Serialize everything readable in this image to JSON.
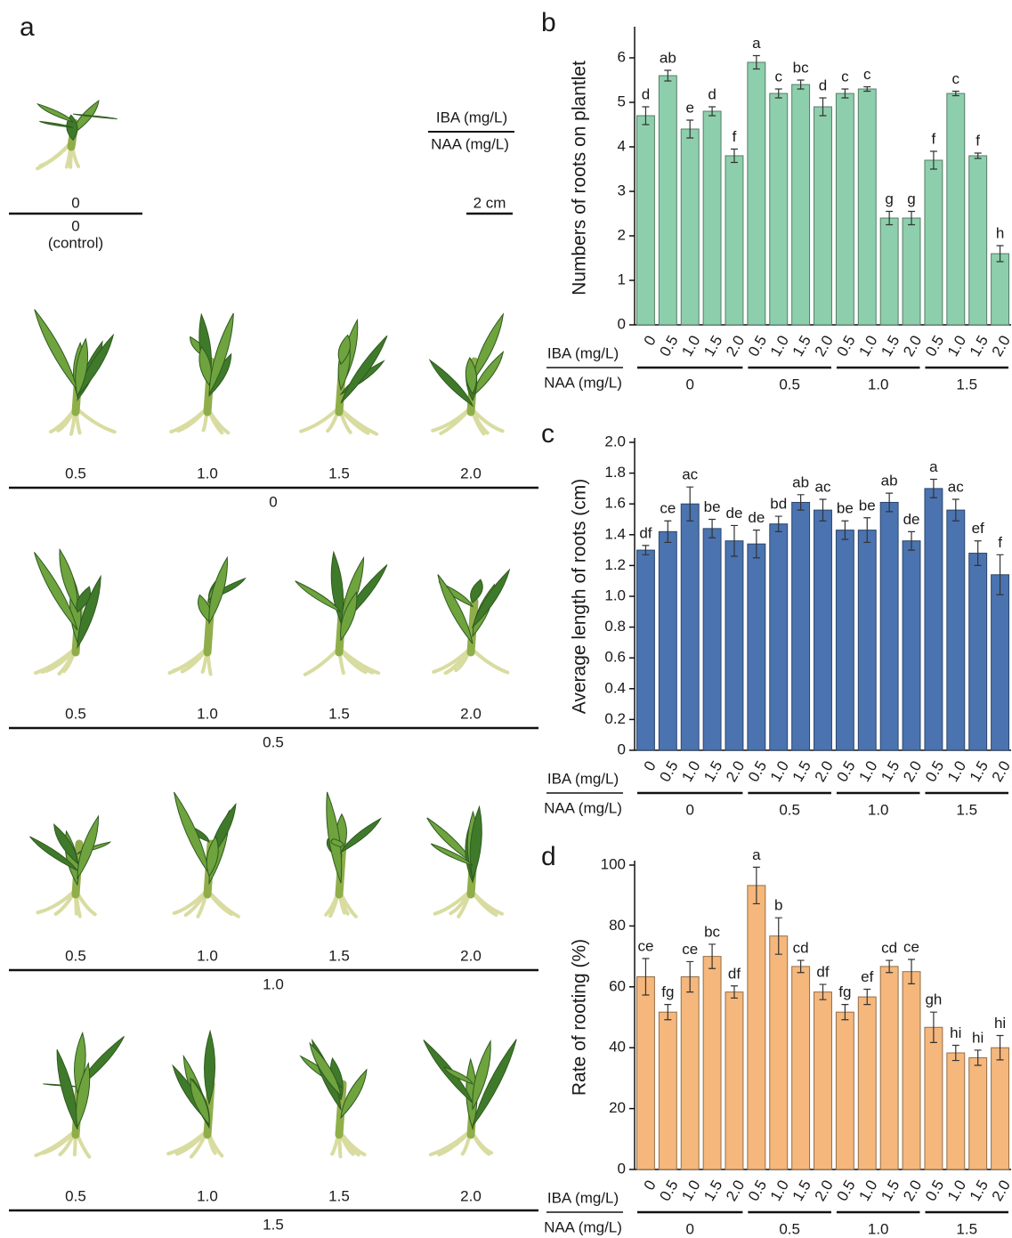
{
  "panel_a": {
    "letter": "a",
    "control": {
      "iba": "0",
      "naa": "0",
      "note": "(control)"
    },
    "legend": {
      "iba": "IBA (mg/L)",
      "naa": "NAA (mg/L)"
    },
    "scale": "2 cm",
    "rows": [
      {
        "naa": "0",
        "iba": [
          "0.5",
          "1.0",
          "1.5",
          "2.0"
        ]
      },
      {
        "naa": "0.5",
        "iba": [
          "0.5",
          "1.0",
          "1.5",
          "2.0"
        ]
      },
      {
        "naa": "1.0",
        "iba": [
          "0.5",
          "1.0",
          "1.5",
          "2.0"
        ]
      },
      {
        "naa": "1.5",
        "iba": [
          "0.5",
          "1.0",
          "1.5",
          "2.0"
        ]
      }
    ]
  },
  "chart_data": [
    {
      "type": "bar",
      "panel": "b",
      "ylabel": "Numbers of roots on plantlet",
      "color": "#8dcfac",
      "row_labels": [
        "IBA (mg/L)",
        "NAA (mg/L)"
      ],
      "groups": [
        {
          "name": "0",
          "categories": [
            "0",
            "0.5",
            "1.0",
            "1.5",
            "2.0"
          ]
        },
        {
          "name": "0.5",
          "categories": [
            "0.5",
            "1.0",
            "1.5",
            "2.0"
          ]
        },
        {
          "name": "1.0",
          "categories": [
            "0.5",
            "1.0",
            "1.5",
            "2.0"
          ]
        },
        {
          "name": "1.5",
          "categories": [
            "0.5",
            "1.0",
            "1.5",
            "2.0"
          ]
        }
      ],
      "values": [
        4.7,
        5.6,
        4.4,
        4.8,
        3.8,
        5.9,
        5.2,
        5.4,
        4.9,
        5.2,
        5.3,
        2.4,
        2.4,
        3.7,
        5.2,
        3.8,
        1.6
      ],
      "errors": [
        0.2,
        0.12,
        0.2,
        0.1,
        0.15,
        0.15,
        0.1,
        0.1,
        0.2,
        0.1,
        0.05,
        0.15,
        0.15,
        0.2,
        0.05,
        0.06,
        0.18
      ],
      "letters": [
        "d",
        "ab",
        "e",
        "d",
        "f",
        "a",
        "c",
        "bc",
        "d",
        "c",
        "c",
        "g",
        "g",
        "f",
        "c",
        "f",
        "h"
      ],
      "ylim": [
        0,
        6.6
      ],
      "yticks": [
        0,
        1,
        2,
        3,
        4,
        5,
        6
      ]
    },
    {
      "type": "bar",
      "panel": "c",
      "ylabel": "Average length of roots (cm)",
      "color": "#4a73b0",
      "row_labels": [
        "IBA (mg/L)",
        "NAA (mg/L)"
      ],
      "groups": [
        {
          "name": "0",
          "categories": [
            "0",
            "0.5",
            "1.0",
            "1.5",
            "2.0"
          ]
        },
        {
          "name": "0.5",
          "categories": [
            "0.5",
            "1.0",
            "1.5",
            "2.0"
          ]
        },
        {
          "name": "1.0",
          "categories": [
            "0.5",
            "1.0",
            "1.5",
            "2.0"
          ]
        },
        {
          "name": "1.5",
          "categories": [
            "0.5",
            "1.0",
            "1.5",
            "2.0"
          ]
        }
      ],
      "values": [
        1.3,
        1.42,
        1.6,
        1.44,
        1.36,
        1.34,
        1.47,
        1.61,
        1.56,
        1.43,
        1.43,
        1.61,
        1.36,
        1.7,
        1.56,
        1.28,
        1.14
      ],
      "errors": [
        0.03,
        0.07,
        0.11,
        0.06,
        0.1,
        0.09,
        0.05,
        0.05,
        0.07,
        0.06,
        0.08,
        0.06,
        0.06,
        0.06,
        0.07,
        0.08,
        0.13
      ],
      "letters": [
        "df",
        "ce",
        "ac",
        "be",
        "de",
        "de",
        "bd",
        "ab",
        "ac",
        "be",
        "be",
        "ab",
        "de",
        "a",
        "ac",
        "ef",
        "f"
      ],
      "ylim": [
        0,
        2
      ],
      "yticks": [
        0,
        0.2,
        0.4,
        0.6,
        0.8,
        {
          "value": 1,
          "label": "1.0"
        },
        1.2,
        1.4,
        1.6,
        1.8,
        {
          "value": 2,
          "label": "2.0"
        }
      ]
    },
    {
      "type": "bar",
      "panel": "d",
      "ylabel": "Rate of rooting (%)",
      "color": "#f5b77b",
      "row_labels": [
        "IBA (mg/L)",
        "NAA (mg/L)"
      ],
      "groups": [
        {
          "name": "0",
          "categories": [
            "0",
            "0.5",
            "1.0",
            "1.5",
            "2.0"
          ]
        },
        {
          "name": "0.5",
          "categories": [
            "0.5",
            "1.0",
            "1.5",
            "2.0"
          ]
        },
        {
          "name": "1.0",
          "categories": [
            "0.5",
            "1.0",
            "1.5",
            "2.0"
          ]
        },
        {
          "name": "1.5",
          "categories": [
            "0.5",
            "1.0",
            "1.5",
            "2.0"
          ]
        }
      ],
      "values": [
        63.3,
        51.7,
        63.3,
        70,
        58.3,
        93.3,
        76.7,
        66.7,
        58.3,
        51.7,
        56.7,
        66.7,
        65,
        46.7,
        38.3,
        36.7,
        40
      ],
      "errors": [
        6,
        2.5,
        5,
        4,
        2,
        6,
        6,
        2,
        2.5,
        2.5,
        2.5,
        2,
        4,
        5,
        2.5,
        2.5,
        4
      ],
      "letters": [
        "ce",
        "fg",
        "ce",
        "bc",
        "df",
        "a",
        "b",
        "cd",
        "df",
        "fg",
        "ef",
        "cd",
        "ce",
        "gh",
        "hi",
        "hi",
        "hi"
      ],
      "ylim": [
        0,
        100
      ],
      "yticks": [
        0,
        20,
        40,
        60,
        80,
        100
      ]
    }
  ]
}
